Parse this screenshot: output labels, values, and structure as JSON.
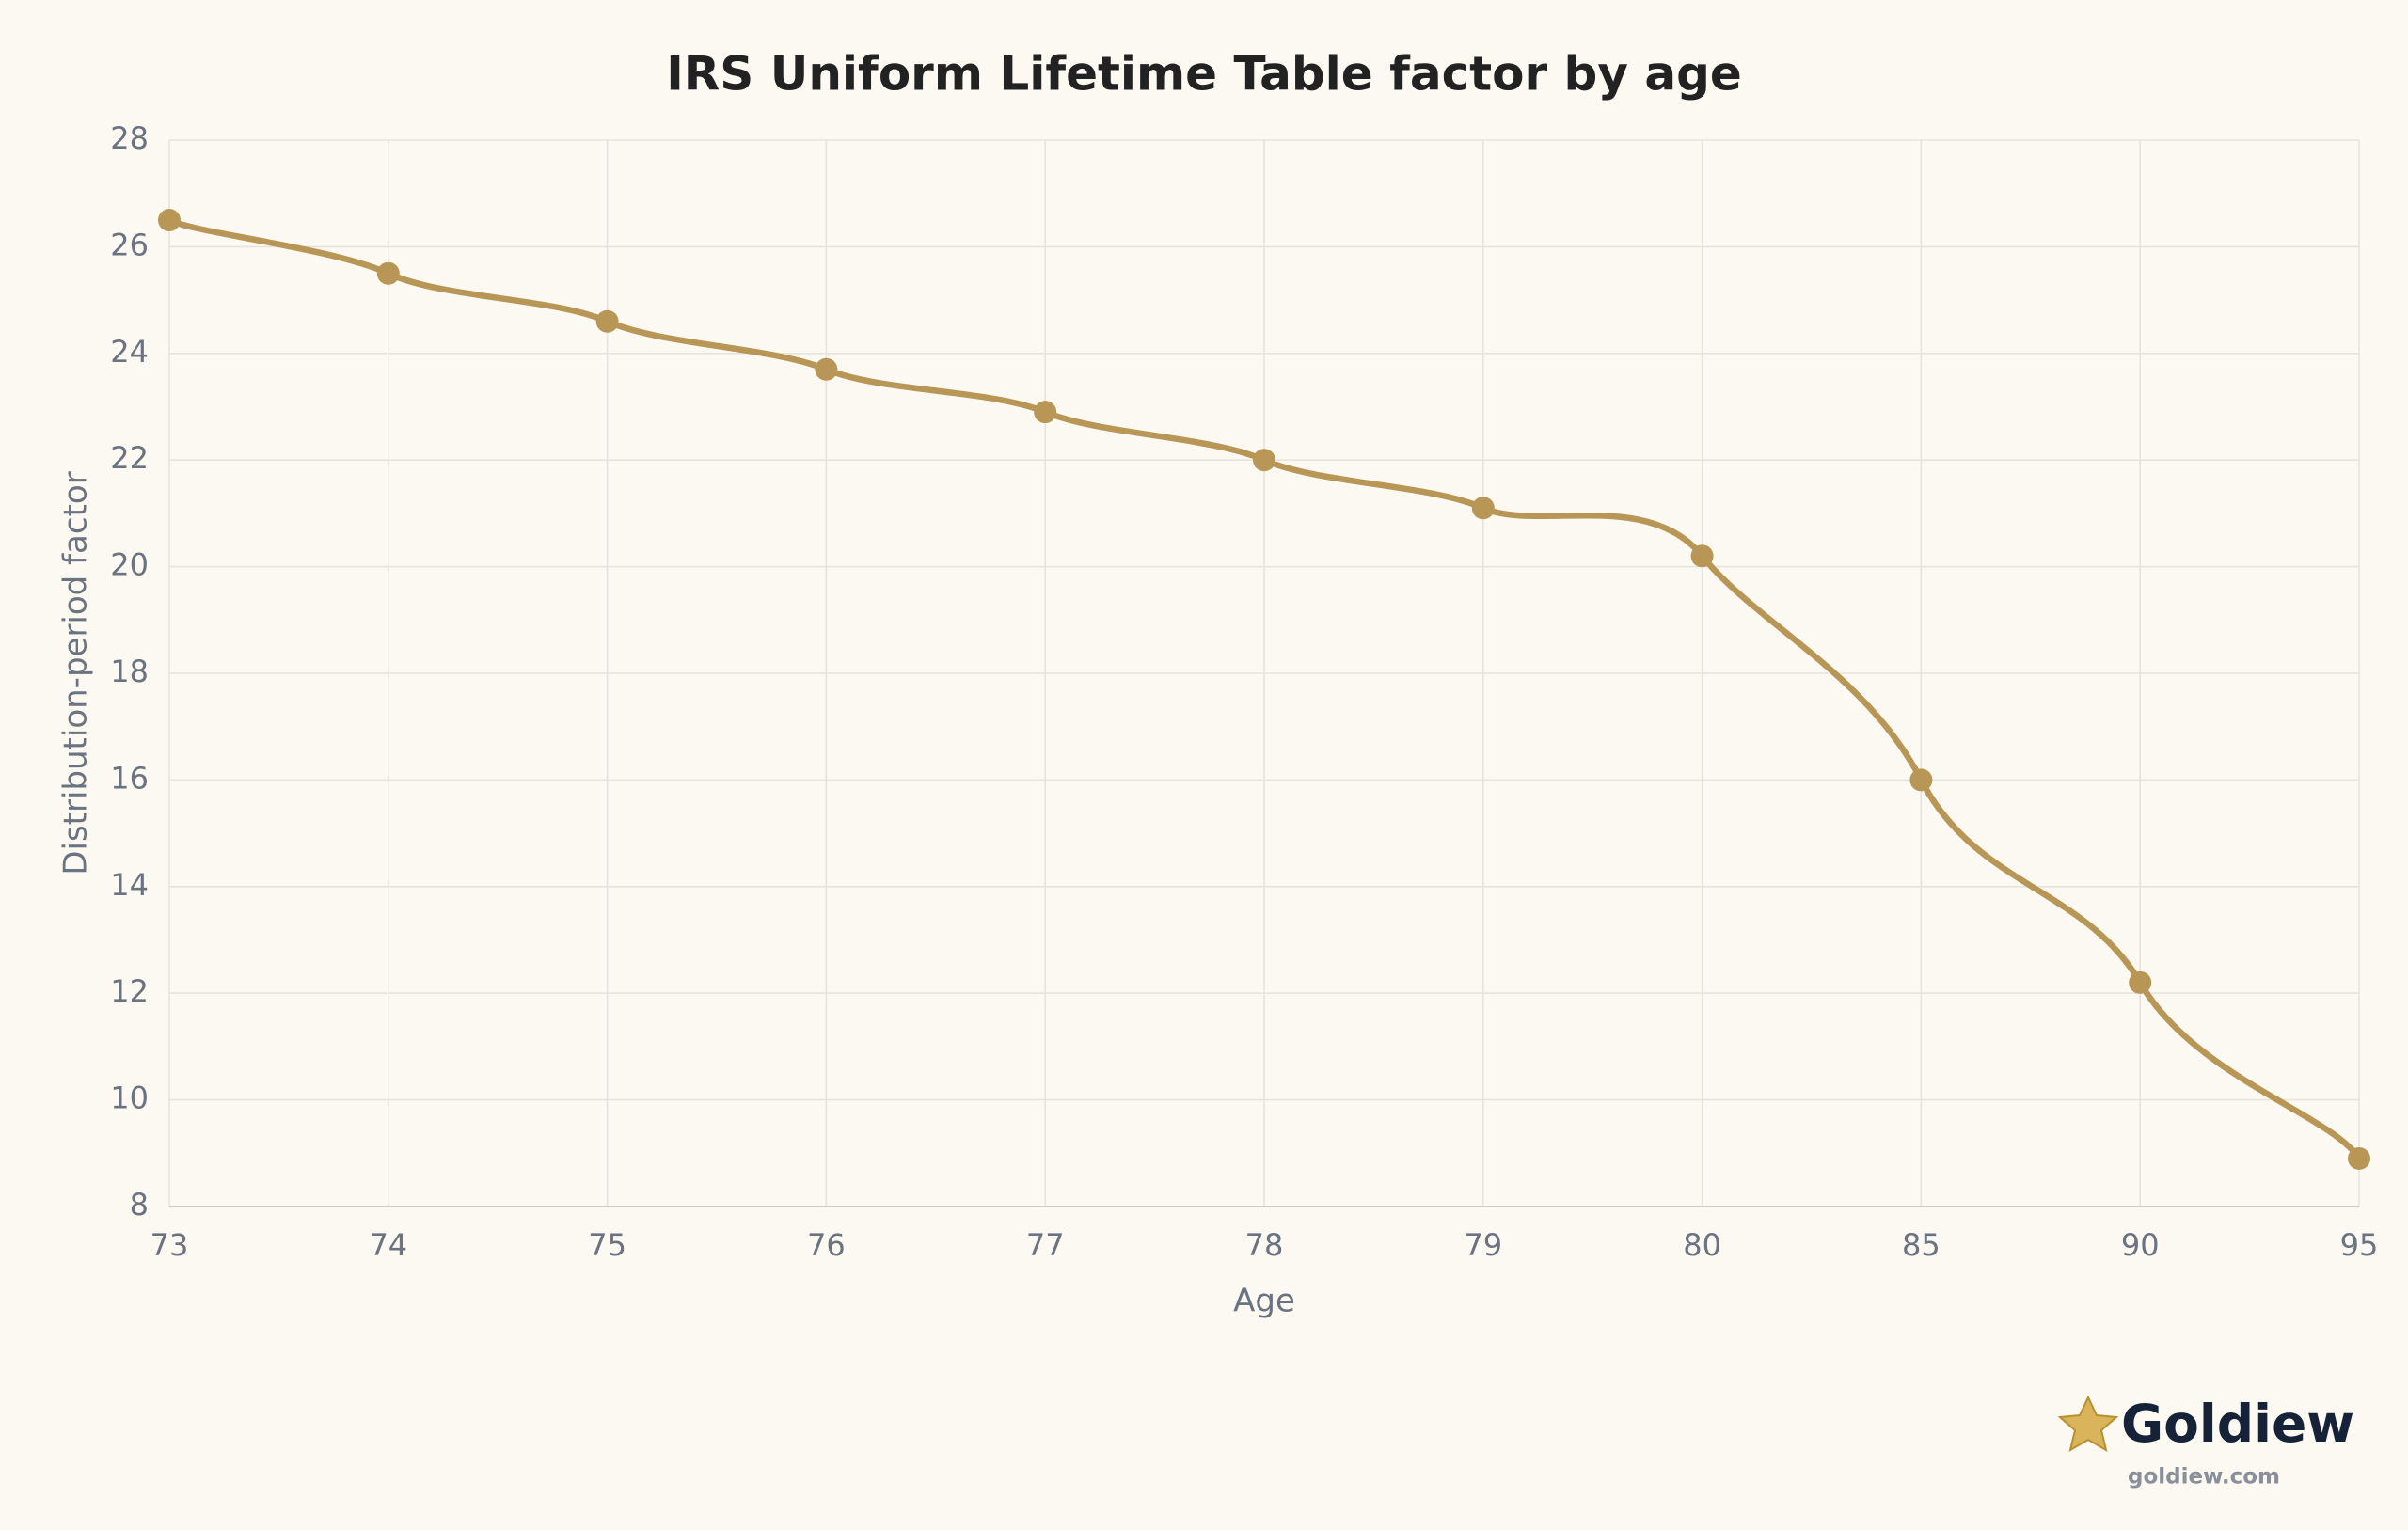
{
  "chart_data": {
    "type": "line",
    "title": "IRS Uniform Lifetime Table factor by age",
    "x_label": "Age",
    "y_label": "Distribution-period factor",
    "categories": [
      "73",
      "74",
      "75",
      "76",
      "77",
      "78",
      "79",
      "80",
      "85",
      "90",
      "95"
    ],
    "values": [
      26.5,
      25.5,
      24.6,
      23.7,
      22.9,
      22.0,
      21.1,
      20.2,
      16.0,
      12.2,
      8.9
    ],
    "color": "#b89656",
    "ylim": [
      8,
      28
    ],
    "yticks": [
      8,
      10,
      12,
      14,
      16,
      18,
      20,
      22,
      24,
      26,
      28
    ],
    "grid": true
  },
  "brand": {
    "name": "Goldiew",
    "url": "goldiew.com"
  }
}
